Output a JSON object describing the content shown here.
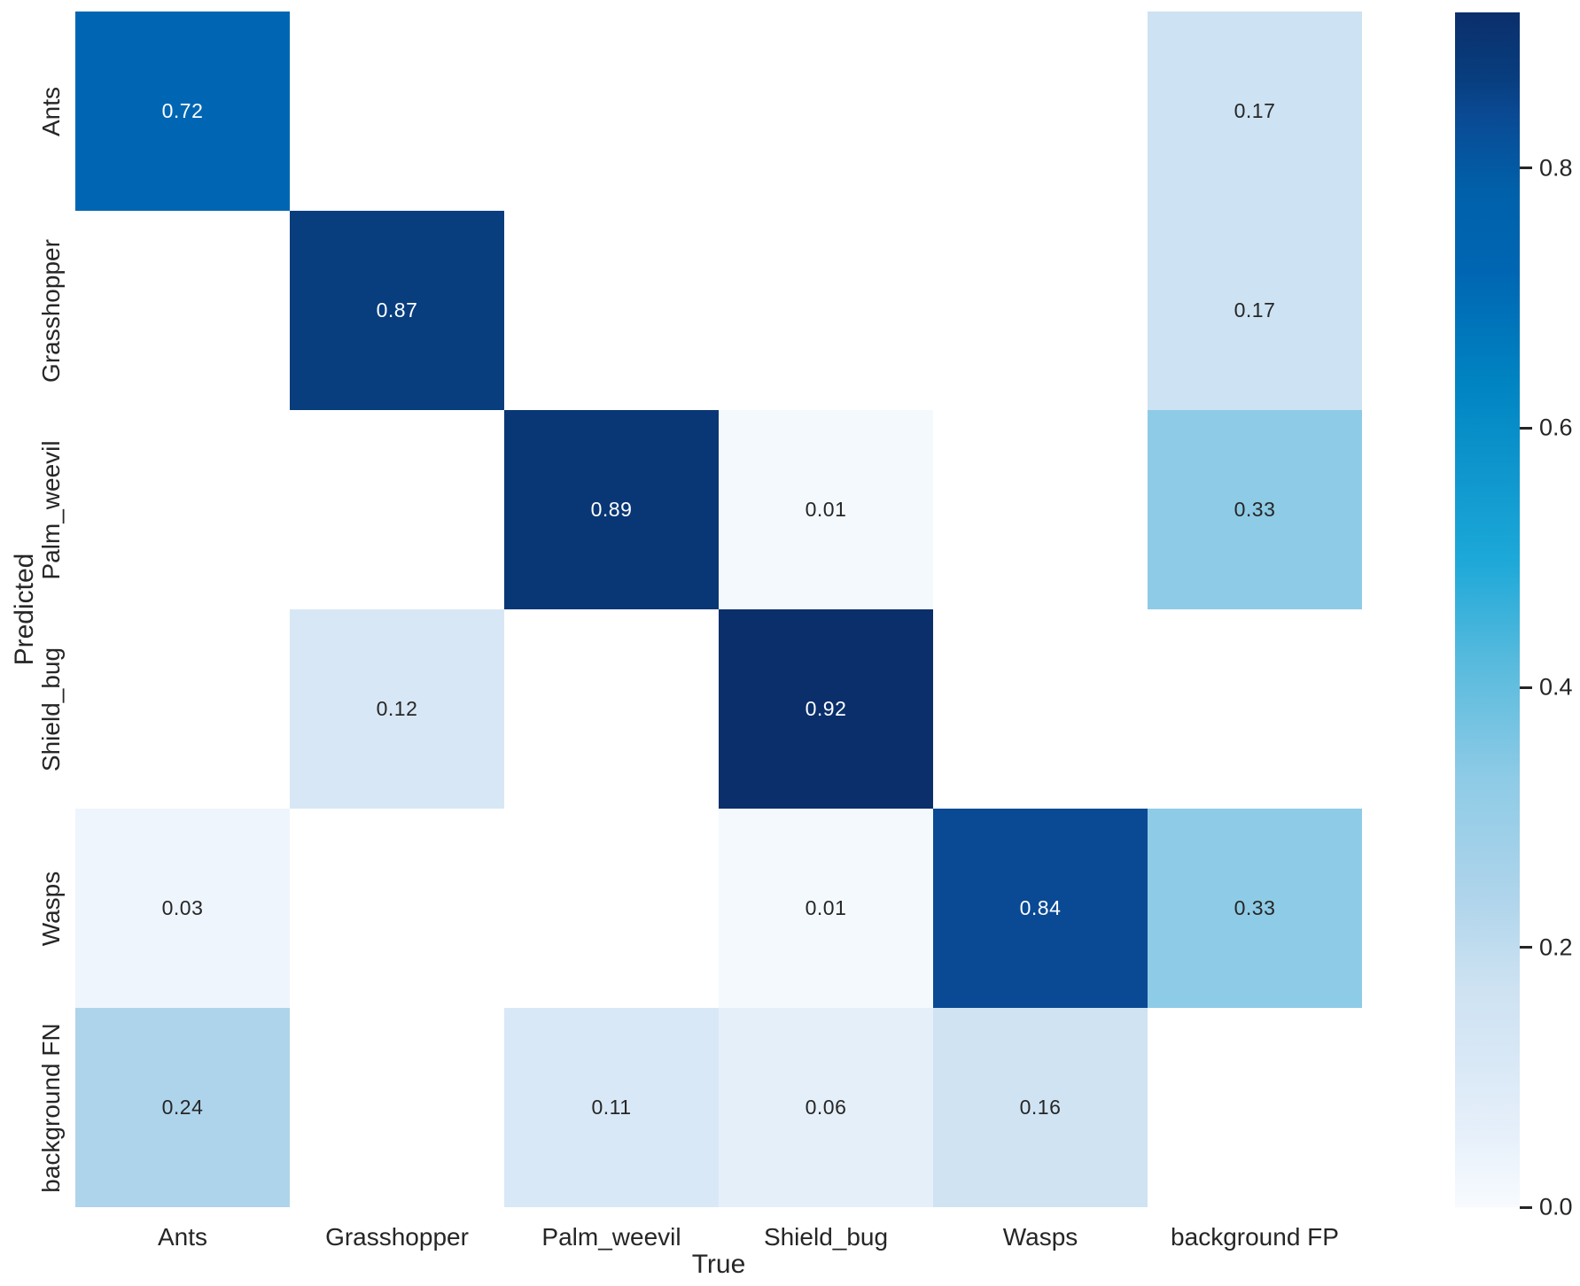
{
  "figure": {
    "background": "#ffffff",
    "text_color": "#262626"
  },
  "chart_data": {
    "type": "heatmap",
    "title": "",
    "xlabel": "True",
    "ylabel": "Predicted",
    "x_categories": [
      "Ants",
      "Grasshopper",
      "Palm_weevil",
      "Shield_bug",
      "Wasps",
      "background FP"
    ],
    "y_categories": [
      "Ants",
      "Grasshopper",
      "Palm_weevil",
      "Shield_bug",
      "Wasps",
      "background FN"
    ],
    "matrix": [
      [
        0.72,
        null,
        null,
        null,
        null,
        0.17
      ],
      [
        null,
        0.87,
        null,
        null,
        null,
        0.17
      ],
      [
        null,
        null,
        0.89,
        0.01,
        null,
        0.33
      ],
      [
        null,
        0.12,
        null,
        0.92,
        null,
        null
      ],
      [
        0.03,
        null,
        null,
        0.01,
        0.84,
        0.33
      ],
      [
        0.24,
        null,
        0.11,
        0.06,
        0.16,
        null
      ]
    ],
    "vmin": 0.0,
    "vmax": 0.92,
    "grid": false,
    "legend_position": "right-colorbar",
    "colorbar_ticks": [
      {
        "label": "0.8",
        "value": 0.8
      },
      {
        "label": "0.6",
        "value": 0.6
      },
      {
        "label": "0.4",
        "value": 0.4
      },
      {
        "label": "0.2",
        "value": 0.2
      },
      {
        "label": "0.0",
        "value": 0.0
      }
    ],
    "colormap_stops": [
      {
        "value": 0.0,
        "color": "#f7fbfe"
      },
      {
        "value": 0.06,
        "color": "#e5effa"
      },
      {
        "value": 0.12,
        "color": "#d7e7f5"
      },
      {
        "value": 0.17,
        "color": "#cde2f2"
      },
      {
        "value": 0.24,
        "color": "#aed4eb"
      },
      {
        "value": 0.33,
        "color": "#8ecbe6"
      },
      {
        "value": 0.42,
        "color": "#57badd"
      },
      {
        "value": 0.5,
        "color": "#1ca8d8"
      },
      {
        "value": 0.635,
        "color": "#0084c2"
      },
      {
        "value": 0.72,
        "color": "#0066b3"
      },
      {
        "value": 0.78,
        "color": "#0061aa"
      },
      {
        "value": 0.84,
        "color": "#0a4a94"
      },
      {
        "value": 0.87,
        "color": "#083d7e"
      },
      {
        "value": 0.92,
        "color": "#0b2f6b"
      }
    ],
    "annotation_colors": {
      "light": "#ffffff",
      "dark": "#262626"
    },
    "annotation_light_threshold": 0.5
  }
}
